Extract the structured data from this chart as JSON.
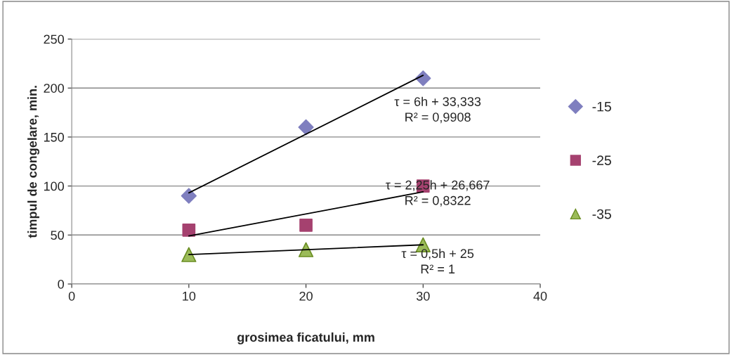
{
  "chart_data": {
    "type": "scatter",
    "xlabel": "grosimea ficatului, mm",
    "ylabel": "timpul de congelare, min.",
    "xlim": [
      0,
      40
    ],
    "xticks": [
      0,
      10,
      20,
      30,
      40
    ],
    "ylim": [
      0,
      250
    ],
    "yticks": [
      0,
      50,
      100,
      150,
      200,
      250
    ],
    "grid": "y",
    "legend": "right",
    "series": [
      {
        "name": "-15",
        "color": "#7f7fbf",
        "marker": "diamond",
        "x": [
          10,
          20,
          30
        ],
        "values": [
          90,
          160,
          210
        ]
      },
      {
        "name": "-25",
        "color": "#a5416f",
        "marker": "square",
        "x": [
          10,
          20,
          30
        ],
        "values": [
          55,
          60,
          100
        ]
      },
      {
        "name": "-35",
        "color": "#9bbb59",
        "marker": "triangle",
        "x": [
          10,
          20,
          30
        ],
        "values": [
          30,
          35,
          40
        ]
      },
      {
        "type": "line",
        "color": "#000000",
        "marker": "none",
        "x": [
          10,
          30
        ],
        "values": [
          93,
          213
        ]
      },
      {
        "type": "line",
        "color": "#000000",
        "marker": "none",
        "x": [
          10,
          30
        ],
        "values": [
          49,
          94
        ]
      },
      {
        "type": "line",
        "color": "#000000",
        "marker": "none",
        "x": [
          10,
          30
        ],
        "values": [
          30,
          40
        ]
      }
    ],
    "annotations": [
      "τ = 6h + 33,333\nR² = 0,9908",
      "τ = 2,25h + 26,667\nR² = 0,8322",
      "τ = 0,5h + 25\nR² = 1"
    ]
  }
}
